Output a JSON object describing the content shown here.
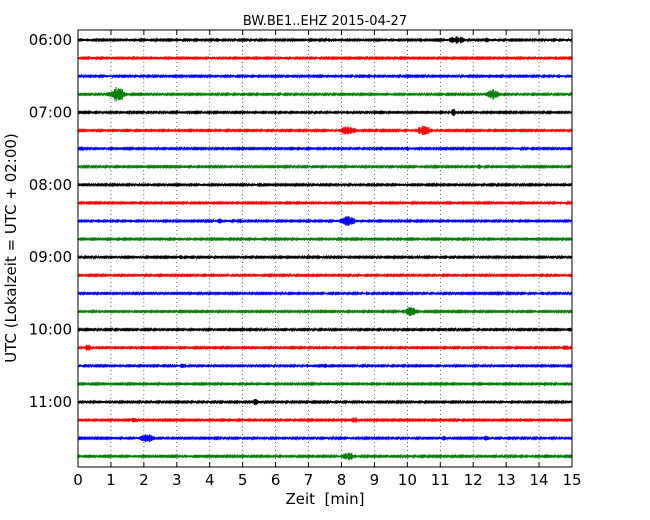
{
  "chart_data": {
    "type": "line",
    "title": "BW.BE1..EHZ 2015-04-27",
    "xlabel": "Zeit  [min]",
    "ylabel": "UTC (Lokalzeit = UTC + 02:00)",
    "xlim": [
      0,
      15
    ],
    "x_ticks": [
      "0",
      "1",
      "2",
      "3",
      "4",
      "5",
      "6",
      "7",
      "8",
      "9",
      "10",
      "11",
      "12",
      "13",
      "14",
      "15"
    ],
    "y_tick_labels": [
      "06:00",
      "07:00",
      "08:00",
      "09:00",
      "10:00",
      "11:00"
    ],
    "grid": "vertical dotted",
    "trace_colors": [
      "#000000",
      "#ff0000",
      "#0000ff",
      "#008000"
    ],
    "traces": [
      {
        "start": "06:00",
        "events": [
          [
            0.3,
            0.3
          ],
          [
            4.2,
            0.35
          ],
          [
            7.6,
            0.3
          ],
          [
            10.4,
            0.35
          ],
          [
            11.5,
            1.0
          ],
          [
            12.4,
            0.55
          ]
        ]
      },
      {
        "start": "06:15",
        "events": [
          [
            2.4,
            0.25
          ],
          [
            6.3,
            0.25
          ],
          [
            14.5,
            0.3
          ]
        ]
      },
      {
        "start": "06:30",
        "events": [
          [
            0.9,
            0.25
          ],
          [
            14.6,
            0.35
          ]
        ]
      },
      {
        "start": "06:45",
        "events": [
          [
            1.2,
            1.8
          ],
          [
            12.6,
            1.05
          ]
        ]
      },
      {
        "start": "07:00",
        "events": [
          [
            8.2,
            0.35
          ],
          [
            11.4,
            0.8
          ],
          [
            12.1,
            0.3
          ]
        ]
      },
      {
        "start": "07:15",
        "events": [
          [
            8.2,
            1.1
          ],
          [
            10.5,
            1.15
          ]
        ]
      },
      {
        "start": "07:30",
        "events": [
          [
            0.1,
            0.5
          ],
          [
            10.0,
            0.35
          ],
          [
            13.3,
            0.25
          ]
        ]
      },
      {
        "start": "07:45",
        "events": [
          [
            12.2,
            0.4
          ]
        ]
      },
      {
        "start": "08:00",
        "events": [
          [
            5.5,
            0.35
          ],
          [
            9.8,
            0.25
          ]
        ]
      },
      {
        "start": "08:15",
        "events": [
          [
            11.3,
            0.5
          ],
          [
            14.7,
            0.2
          ]
        ]
      },
      {
        "start": "08:30",
        "events": [
          [
            0.6,
            0.3
          ],
          [
            1.6,
            0.3
          ],
          [
            4.3,
            0.6
          ],
          [
            4.9,
            0.5
          ],
          [
            8.2,
            1.3
          ]
        ]
      },
      {
        "start": "08:45",
        "events": [
          [
            3.1,
            0.25
          ]
        ]
      },
      {
        "start": "09:00",
        "events": [
          [
            3.1,
            0.4
          ],
          [
            7.3,
            0.4
          ],
          [
            10.1,
            0.45
          ]
        ]
      },
      {
        "start": "09:15",
        "events": [
          [
            5.4,
            0.3
          ],
          [
            8.6,
            0.2
          ]
        ]
      },
      {
        "start": "09:30",
        "events": [
          [
            8.8,
            0.3
          ],
          [
            14.1,
            0.3
          ]
        ]
      },
      {
        "start": "09:45",
        "events": [
          [
            10.1,
            1.05
          ],
          [
            13.2,
            0.3
          ]
        ]
      },
      {
        "start": "10:00",
        "events": [
          [
            12.0,
            0.25
          ],
          [
            14.9,
            0.4
          ]
        ]
      },
      {
        "start": "10:15",
        "events": [
          [
            0.3,
            0.7
          ],
          [
            12.4,
            0.3
          ],
          [
            14.8,
            0.7
          ]
        ]
      },
      {
        "start": "10:30",
        "events": [
          [
            3.2,
            0.55
          ],
          [
            7.0,
            0.35
          ],
          [
            7.5,
            0.5
          ]
        ]
      },
      {
        "start": "10:45",
        "events": [
          [
            2.6,
            0.3
          ]
        ]
      },
      {
        "start": "11:00",
        "events": [
          [
            5.4,
            0.75
          ],
          [
            8.6,
            0.3
          ]
        ]
      },
      {
        "start": "11:15",
        "events": [
          [
            1.7,
            0.5
          ],
          [
            8.4,
            0.75
          ],
          [
            13.6,
            0.3
          ]
        ]
      },
      {
        "start": "11:30",
        "events": [
          [
            2.1,
            0.9
          ],
          [
            11.1,
            0.45
          ],
          [
            12.4,
            0.7
          ]
        ]
      },
      {
        "start": "11:45",
        "events": [
          [
            3.3,
            0.25
          ],
          [
            8.2,
            0.85
          ]
        ]
      }
    ]
  }
}
